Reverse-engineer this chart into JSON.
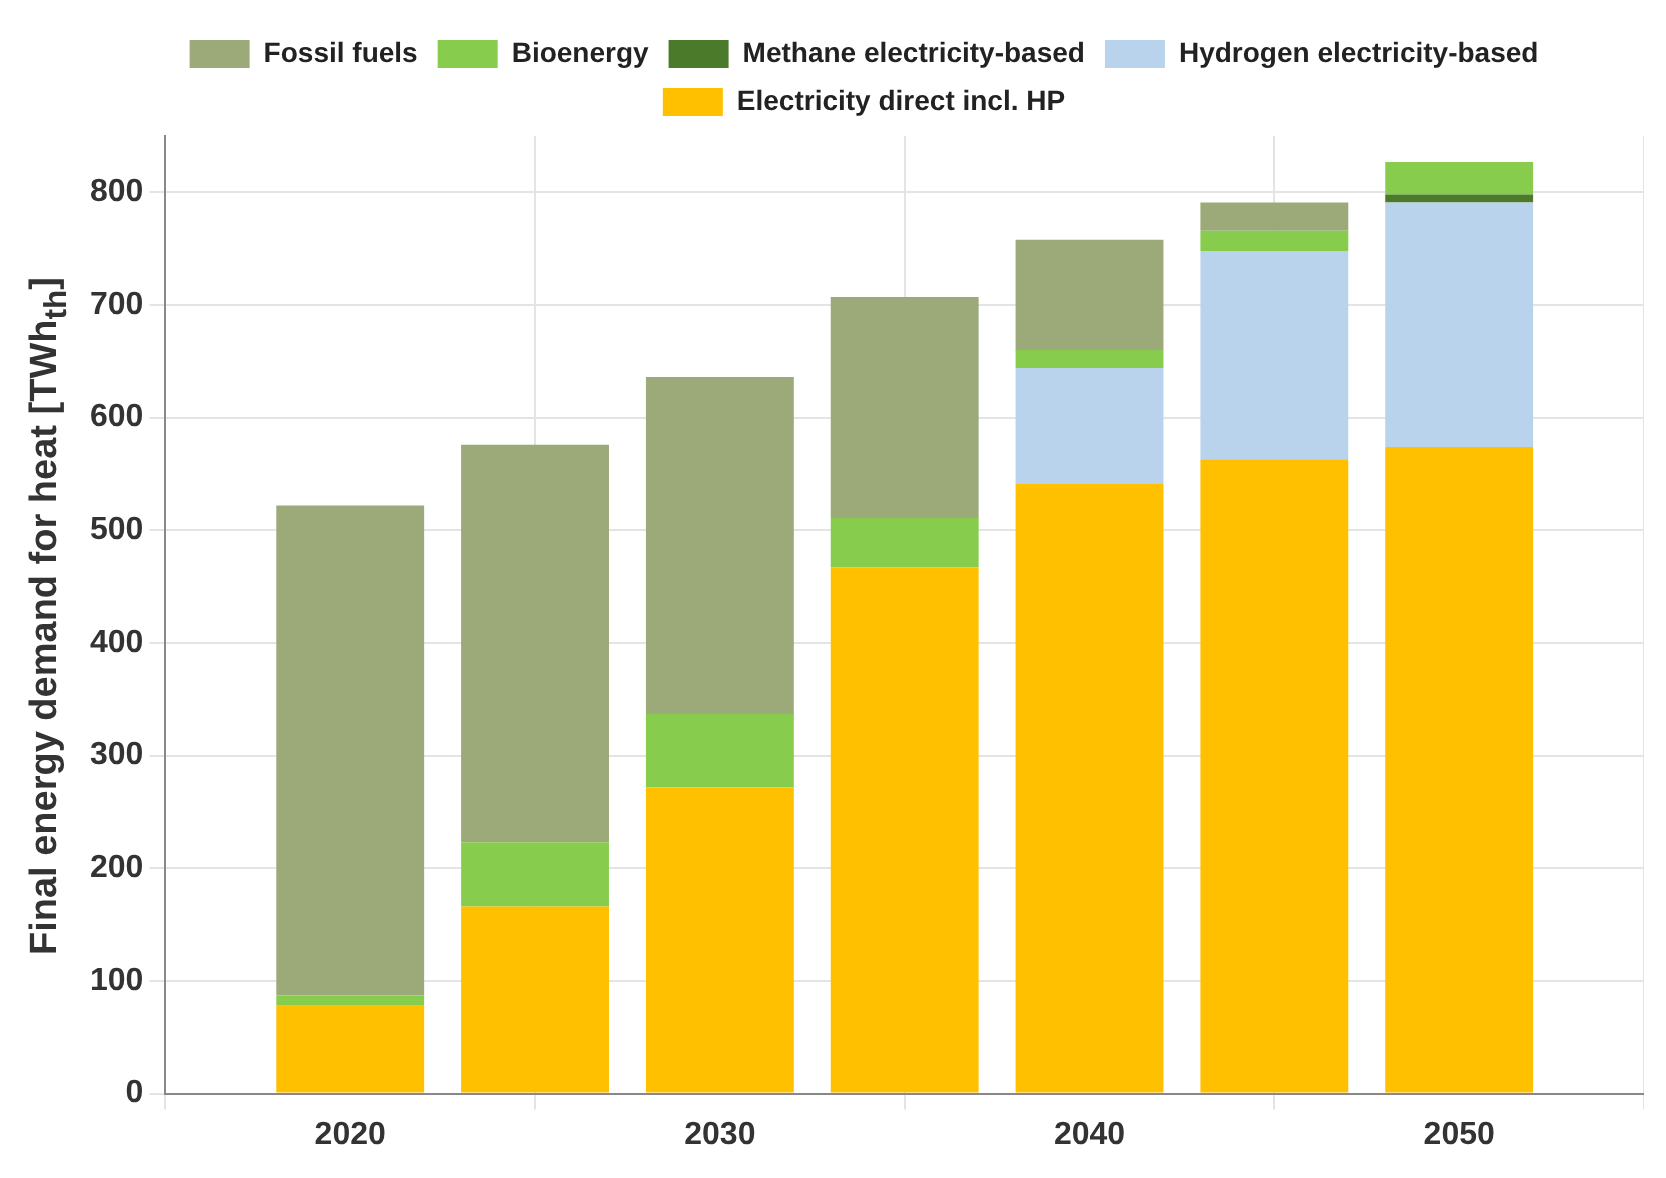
{
  "chart_data": {
    "type": "bar",
    "stacked": true,
    "ylabel": "Final energy demand for heat [TWh$_{th}$]",
    "x": [
      2020,
      2025,
      2030,
      2035,
      2040,
      2045,
      2050
    ],
    "xlim": [
      2015,
      2055
    ],
    "xticks": [
      2020,
      2030,
      2040,
      2050
    ],
    "ylim": [
      0,
      850
    ],
    "yticks": [
      0,
      100,
      200,
      300,
      400,
      500,
      600,
      700,
      800
    ],
    "grid": true,
    "legend": "top",
    "series": [
      {
        "name": "Electricity direct incl. HP",
        "color": "#ffc000",
        "values": [
          78,
          166,
          272,
          467,
          541,
          563,
          574
        ]
      },
      {
        "name": "Hydrogen electricity-based",
        "color": "#b9d3ec",
        "values": [
          0,
          0,
          0,
          0,
          103,
          185,
          217
        ]
      },
      {
        "name": "Methane electricity-based",
        "color": "#4a7a2a",
        "values": [
          0,
          0,
          0,
          0,
          0,
          0,
          7
        ]
      },
      {
        "name": "Bioenergy",
        "color": "#88cc4e",
        "values": [
          9,
          57,
          65,
          44,
          16,
          18,
          29
        ]
      },
      {
        "name": "Fossil fuels",
        "color": "#9caa7a",
        "values": [
          435,
          353,
          299,
          196,
          98,
          25,
          0
        ]
      }
    ]
  }
}
